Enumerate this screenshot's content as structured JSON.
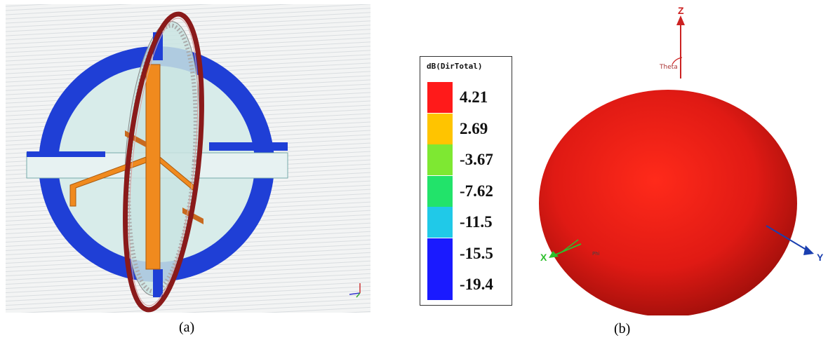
{
  "panel_a": {
    "caption": "(a)"
  },
  "panel_b": {
    "caption": "(b)"
  },
  "legend": {
    "title": "dB(DirTotal)",
    "entries": [
      {
        "label": "4.21",
        "color": "#ff1a1a"
      },
      {
        "label": "2.69",
        "color": "#ffc400"
      },
      {
        "label": "-3.67",
        "color": "#7ee832"
      },
      {
        "label": "-7.62",
        "color": "#22e36a"
      },
      {
        "label": "-11.5",
        "color": "#20c9e8"
      },
      {
        "label": "-15.5",
        "color": "#1a1aff"
      },
      {
        "label": "-19.4",
        "color": "#1a1aff"
      }
    ]
  },
  "axes": {
    "z": "Z",
    "x": "X",
    "y": "Y",
    "theta": "Theta",
    "phi": "Phi"
  },
  "colors": {
    "ring_blue": "#1f3fd6",
    "strip": "#f08a1e",
    "loop_red": "#8a1a1a",
    "pattern_red": "#e01a1a"
  }
}
